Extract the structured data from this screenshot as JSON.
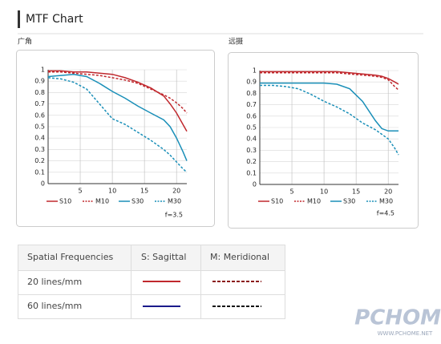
{
  "header": {
    "title": "MTF Chart"
  },
  "chart_data": [
    {
      "type": "line",
      "title": "广角",
      "note": "f=3.5",
      "grid": true,
      "x": [
        0,
        2,
        4,
        6,
        8,
        10,
        12,
        14,
        16,
        18,
        19,
        20,
        21,
        21.6
      ],
      "xlim": [
        0,
        21.6
      ],
      "xticks": [
        5,
        10,
        15,
        20
      ],
      "ylim": [
        0,
        1
      ],
      "yticks": [
        0,
        0.1,
        0.2,
        0.3,
        0.4,
        0.5,
        0.6,
        0.7,
        0.8,
        0.9,
        1
      ],
      "series": [
        {
          "name": "S10",
          "color": "#c0282d",
          "dash": false,
          "values": [
            0.99,
            0.99,
            0.98,
            0.98,
            0.97,
            0.96,
            0.93,
            0.89,
            0.84,
            0.77,
            0.7,
            0.62,
            0.52,
            0.46
          ]
        },
        {
          "name": "M10",
          "color": "#c0282d",
          "dash": true,
          "values": [
            0.98,
            0.98,
            0.97,
            0.96,
            0.95,
            0.93,
            0.91,
            0.88,
            0.83,
            0.78,
            0.75,
            0.71,
            0.66,
            0.62
          ]
        },
        {
          "name": "S30",
          "color": "#1a8fb8",
          "dash": false,
          "values": [
            0.94,
            0.95,
            0.96,
            0.94,
            0.88,
            0.81,
            0.75,
            0.68,
            0.62,
            0.56,
            0.5,
            0.4,
            0.28,
            0.2
          ]
        },
        {
          "name": "M30",
          "color": "#1a8fb8",
          "dash": true,
          "values": [
            0.93,
            0.92,
            0.89,
            0.83,
            0.7,
            0.57,
            0.52,
            0.45,
            0.38,
            0.3,
            0.25,
            0.19,
            0.13,
            0.1
          ]
        }
      ]
    },
    {
      "type": "line",
      "title": "远摄",
      "note": "f=4.5",
      "grid": true,
      "x": [
        0,
        2,
        4,
        6,
        8,
        10,
        12,
        14,
        16,
        18,
        19,
        20,
        21,
        21.6
      ],
      "xlim": [
        0,
        21.6
      ],
      "xticks": [
        5,
        10,
        15,
        20
      ],
      "ylim": [
        0,
        1
      ],
      "yticks": [
        0,
        0.1,
        0.2,
        0.3,
        0.4,
        0.5,
        0.6,
        0.7,
        0.8,
        0.9,
        1
      ],
      "series": [
        {
          "name": "S10",
          "color": "#c0282d",
          "dash": false,
          "values": [
            0.99,
            0.99,
            0.99,
            0.99,
            0.99,
            0.99,
            0.99,
            0.98,
            0.97,
            0.96,
            0.95,
            0.93,
            0.9,
            0.88
          ]
        },
        {
          "name": "M10",
          "color": "#c0282d",
          "dash": true,
          "values": [
            0.98,
            0.98,
            0.98,
            0.98,
            0.98,
            0.98,
            0.98,
            0.97,
            0.96,
            0.95,
            0.94,
            0.92,
            0.86,
            0.83
          ]
        },
        {
          "name": "S30",
          "color": "#1a8fb8",
          "dash": false,
          "values": [
            0.89,
            0.89,
            0.89,
            0.89,
            0.89,
            0.89,
            0.88,
            0.84,
            0.73,
            0.56,
            0.49,
            0.47,
            0.47,
            0.47
          ]
        },
        {
          "name": "M30",
          "color": "#1a8fb8",
          "dash": true,
          "values": [
            0.87,
            0.87,
            0.86,
            0.84,
            0.79,
            0.73,
            0.68,
            0.62,
            0.54,
            0.48,
            0.44,
            0.4,
            0.32,
            0.26
          ]
        }
      ]
    }
  ],
  "table": {
    "header": [
      "Spatial Frequencies",
      "S: Sagittal",
      "M: Meridional"
    ],
    "rows": [
      [
        "20 lines/mm"
      ],
      [
        "60 lines/mm"
      ]
    ]
  },
  "watermark": {
    "logo": "PCHOME",
    "url": "WWW.PCHOME.NET"
  }
}
